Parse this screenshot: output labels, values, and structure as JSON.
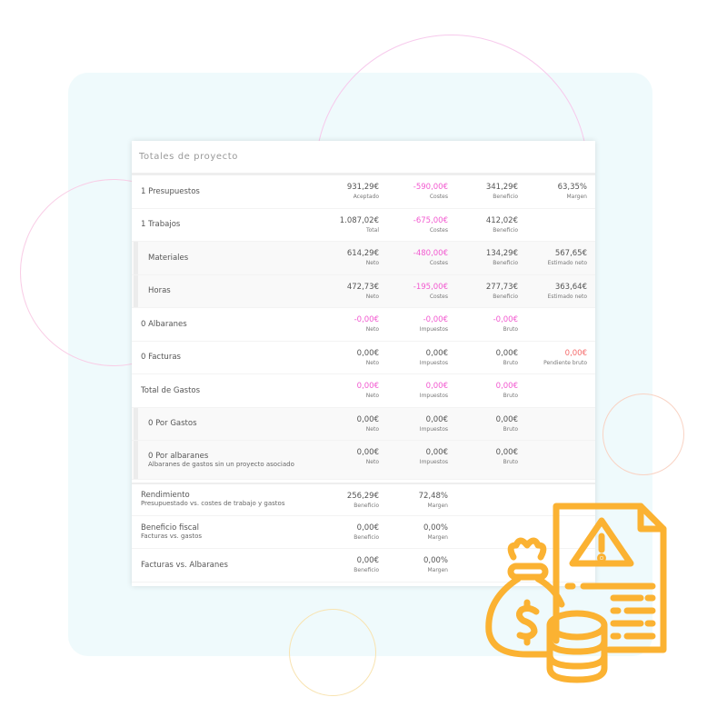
{
  "title": "Totales de proyecto",
  "colors": {
    "accent_pink": "#f25ad0",
    "alert_red": "#f56c6c",
    "icon_orange": "#fbb232",
    "background_panel": "#effafc"
  },
  "icon": "money-bag-coins-warning-document-icon",
  "rows": [
    {
      "label": "1 Presupuestos",
      "type": "main",
      "cells": [
        {
          "value": "931,29€",
          "caption": "Aceptado"
        },
        {
          "value": "-590,00€",
          "caption": "Costes",
          "color": "pink"
        },
        {
          "value": "341,29€",
          "caption": "Beneficio"
        },
        {
          "value": "63,35%",
          "caption": "Margen"
        }
      ]
    },
    {
      "label": "1 Trabajos",
      "type": "main",
      "cells": [
        {
          "value": "1.087,02€",
          "caption": "Total"
        },
        {
          "value": "-675,00€",
          "caption": "Costes",
          "color": "pink"
        },
        {
          "value": "412,02€",
          "caption": "Beneficio"
        }
      ]
    },
    {
      "label": "Materiales",
      "type": "sub",
      "cells": [
        {
          "value": "614,29€",
          "caption": "Neto"
        },
        {
          "value": "-480,00€",
          "caption": "Costes",
          "color": "pink"
        },
        {
          "value": "134,29€",
          "caption": "Beneficio"
        },
        {
          "value": "567,65€",
          "caption": "Estimado neto"
        }
      ]
    },
    {
      "label": "Horas",
      "type": "sub",
      "cells": [
        {
          "value": "472,73€",
          "caption": "Neto"
        },
        {
          "value": "-195,00€",
          "caption": "Costes",
          "color": "pink"
        },
        {
          "value": "277,73€",
          "caption": "Beneficio"
        },
        {
          "value": "363,64€",
          "caption": "Estimado neto"
        }
      ]
    },
    {
      "label": "0 Albaranes",
      "type": "main",
      "cells": [
        {
          "value": "-0,00€",
          "caption": "Neto",
          "color": "pink"
        },
        {
          "value": "-0,00€",
          "caption": "Impuestos",
          "color": "pink"
        },
        {
          "value": "-0,00€",
          "caption": "Bruto",
          "color": "pink"
        }
      ]
    },
    {
      "label": "0 Facturas",
      "type": "main",
      "cells": [
        {
          "value": "0,00€",
          "caption": "Neto"
        },
        {
          "value": "0,00€",
          "caption": "Impuestos"
        },
        {
          "value": "0,00€",
          "caption": "Bruto"
        },
        {
          "value": "0,00€",
          "caption": "Pendiente bruto",
          "color": "red"
        }
      ]
    },
    {
      "label": "Total de Gastos",
      "type": "main",
      "cells": [
        {
          "value": "0,00€",
          "caption": "Neto",
          "color": "pink"
        },
        {
          "value": "0,00€",
          "caption": "Impuestos",
          "color": "pink"
        },
        {
          "value": "0,00€",
          "caption": "Bruto",
          "color": "pink"
        }
      ]
    },
    {
      "label": "0 Por Gastos",
      "type": "sub",
      "cells": [
        {
          "value": "0,00€",
          "caption": "Neto"
        },
        {
          "value": "0,00€",
          "caption": "Impuestos"
        },
        {
          "value": "0,00€",
          "caption": "Bruto"
        }
      ]
    },
    {
      "label": "0 Por albaranes",
      "sublabel": "Albaranes de gastos sin un proyecto asociado",
      "type": "sub",
      "cells": [
        {
          "value": "0,00€",
          "caption": "Neto"
        },
        {
          "value": "0,00€",
          "caption": "Impuestos"
        },
        {
          "value": "0,00€",
          "caption": "Bruto"
        }
      ]
    },
    {
      "label": "Rendimiento",
      "sublabel": "Presupuestado vs. costes de trabajo y gastos",
      "type": "summary",
      "cells": [
        {
          "value": "256,29€",
          "caption": "Beneficio"
        },
        {
          "value": "72,48%",
          "caption": "Margen"
        }
      ]
    },
    {
      "label": "Beneficio fiscal",
      "sublabel": "Facturas vs. gastos",
      "type": "summary",
      "cells": [
        {
          "value": "0,00€",
          "caption": "Beneficio"
        },
        {
          "value": "0,00%",
          "caption": "Margen"
        }
      ]
    },
    {
      "label": "Facturas vs. Albaranes",
      "type": "summary",
      "cells": [
        {
          "value": "0,00€",
          "caption": "Beneficio"
        },
        {
          "value": "0,00%",
          "caption": "Margen"
        }
      ]
    }
  ]
}
